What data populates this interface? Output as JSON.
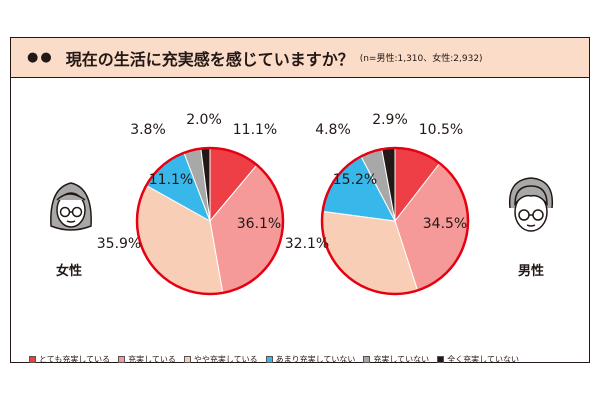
{
  "title": {
    "bullets": "●●",
    "text": "現在の生活に充実感を感じていますか？",
    "note": "(n=男性:1,310、女性:2,932)"
  },
  "colors": {
    "very": "#ee3f46",
    "somewhat_full": "#f59a98",
    "slightly": "#f8cfb6",
    "not_very": "#38b8ea",
    "not": "#a8a8a8",
    "not_at_all": "#231815"
  },
  "chart_data": [
    {
      "type": "pie",
      "name": "女性",
      "categories": [
        "とても充実している",
        "充実している",
        "やや充実している",
        "あまり充実していない",
        "充実していない",
        "全く充実していない"
      ],
      "values": [
        11.1,
        36.1,
        35.9,
        11.1,
        3.8,
        2.0
      ],
      "labels": [
        "11.1%",
        "36.1%",
        "35.9%",
        "11.1%",
        "3.8%",
        "2.0%"
      ]
    },
    {
      "type": "pie",
      "name": "男性",
      "categories": [
        "とても充実している",
        "充実している",
        "やや充実している",
        "あまり充実していない",
        "充実していない",
        "全く充実していない"
      ],
      "values": [
        10.5,
        34.5,
        32.1,
        15.2,
        4.8,
        2.9
      ],
      "labels": [
        "10.5%",
        "34.5%",
        "32.1%",
        "15.2%",
        "4.8%",
        "2.9%"
      ]
    }
  ],
  "legend": [
    {
      "label": "とても充実している",
      "color": "#ee3f46"
    },
    {
      "label": "充実している",
      "color": "#f59a98"
    },
    {
      "label": "やや充実している",
      "color": "#f8cfb6"
    },
    {
      "label": "あまり充実していない",
      "color": "#38b8ea"
    },
    {
      "label": "充実していない",
      "color": "#a8a8a8"
    },
    {
      "label": "全く充実していない",
      "color": "#231815"
    }
  ],
  "persons": {
    "female": {
      "label": "女性",
      "icon": "woman-face-icon"
    },
    "male": {
      "label": "男性",
      "icon": "man-face-icon"
    }
  }
}
